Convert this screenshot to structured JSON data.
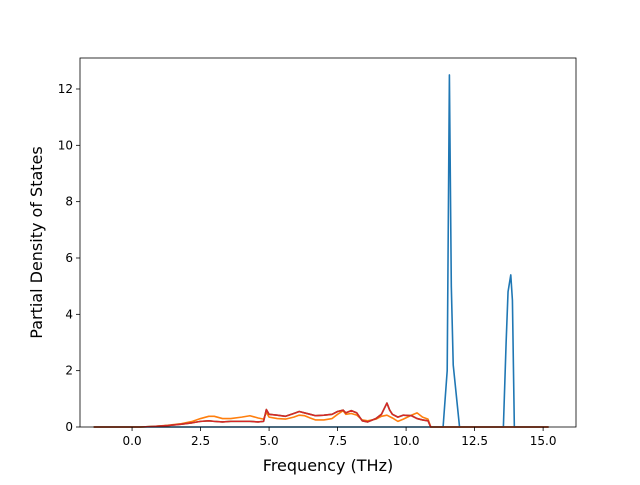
{
  "chart_data": {
    "type": "line",
    "title": "",
    "xlabel": "Frequency (THz)",
    "ylabel": "Partial Density of States",
    "xlim": [
      -1.9,
      16.2
    ],
    "ylim": [
      0,
      13.1
    ],
    "xticks": [
      0.0,
      2.5,
      5.0,
      7.5,
      10.0,
      12.5,
      15.0
    ],
    "xtick_labels": [
      "0.0",
      "2.5",
      "5.0",
      "7.5",
      "10.0",
      "12.5",
      "15.0"
    ],
    "yticks": [
      0,
      2,
      4,
      6,
      8,
      10,
      12
    ],
    "ytick_labels": [
      "0",
      "2",
      "4",
      "6",
      "8",
      "10",
      "12"
    ],
    "grid": false,
    "legend": "none",
    "series": [
      {
        "color": "#1f77b4",
        "points": [
          [
            -1.4,
            0
          ],
          [
            11.35,
            0
          ],
          [
            11.5,
            2.0
          ],
          [
            11.58,
            12.5
          ],
          [
            11.65,
            5.0
          ],
          [
            11.72,
            2.2
          ],
          [
            11.95,
            0
          ],
          [
            13.55,
            0
          ],
          [
            13.65,
            3.0
          ],
          [
            13.72,
            4.8
          ],
          [
            13.82,
            5.4
          ],
          [
            13.88,
            4.5
          ],
          [
            13.95,
            0
          ],
          [
            15.2,
            0
          ]
        ]
      },
      {
        "color": "#ff7f0e",
        "points": [
          [
            -1.4,
            0
          ],
          [
            0.3,
            0
          ],
          [
            0.8,
            0.02
          ],
          [
            1.3,
            0.06
          ],
          [
            1.8,
            0.12
          ],
          [
            2.2,
            0.2
          ],
          [
            2.5,
            0.3
          ],
          [
            2.8,
            0.38
          ],
          [
            3.0,
            0.38
          ],
          [
            3.3,
            0.3
          ],
          [
            3.6,
            0.3
          ],
          [
            4.0,
            0.35
          ],
          [
            4.3,
            0.4
          ],
          [
            4.6,
            0.32
          ],
          [
            4.8,
            0.28
          ],
          [
            4.9,
            0.52
          ],
          [
            5.0,
            0.35
          ],
          [
            5.3,
            0.3
          ],
          [
            5.6,
            0.28
          ],
          [
            5.9,
            0.35
          ],
          [
            6.1,
            0.42
          ],
          [
            6.3,
            0.4
          ],
          [
            6.5,
            0.32
          ],
          [
            6.7,
            0.25
          ],
          [
            7.0,
            0.25
          ],
          [
            7.3,
            0.3
          ],
          [
            7.5,
            0.45
          ],
          [
            7.7,
            0.58
          ],
          [
            7.8,
            0.45
          ],
          [
            8.0,
            0.48
          ],
          [
            8.2,
            0.42
          ],
          [
            8.4,
            0.25
          ],
          [
            8.6,
            0.22
          ],
          [
            8.9,
            0.28
          ],
          [
            9.1,
            0.38
          ],
          [
            9.3,
            0.42
          ],
          [
            9.5,
            0.32
          ],
          [
            9.7,
            0.2
          ],
          [
            9.9,
            0.28
          ],
          [
            10.2,
            0.42
          ],
          [
            10.4,
            0.5
          ],
          [
            10.6,
            0.35
          ],
          [
            10.8,
            0.28
          ],
          [
            10.9,
            0
          ],
          [
            15.2,
            0
          ]
        ]
      },
      {
        "color": "#2ca02c",
        "points": [
          [
            -1.4,
            0
          ],
          [
            0.3,
            0
          ],
          [
            0.8,
            0.02
          ],
          [
            1.3,
            0.05
          ],
          [
            1.8,
            0.1
          ],
          [
            2.2,
            0.15
          ],
          [
            2.5,
            0.2
          ],
          [
            2.8,
            0.22
          ],
          [
            3.0,
            0.2
          ],
          [
            3.3,
            0.18
          ],
          [
            3.6,
            0.2
          ],
          [
            4.0,
            0.2
          ],
          [
            4.3,
            0.2
          ],
          [
            4.6,
            0.18
          ],
          [
            4.8,
            0.2
          ],
          [
            4.9,
            0.62
          ],
          [
            5.0,
            0.45
          ],
          [
            5.3,
            0.42
          ],
          [
            5.6,
            0.38
          ],
          [
            5.9,
            0.48
          ],
          [
            6.1,
            0.55
          ],
          [
            6.3,
            0.5
          ],
          [
            6.5,
            0.45
          ],
          [
            6.7,
            0.4
          ],
          [
            7.0,
            0.42
          ],
          [
            7.3,
            0.45
          ],
          [
            7.5,
            0.55
          ],
          [
            7.7,
            0.6
          ],
          [
            7.8,
            0.5
          ],
          [
            8.0,
            0.58
          ],
          [
            8.2,
            0.5
          ],
          [
            8.4,
            0.22
          ],
          [
            8.6,
            0.18
          ],
          [
            8.9,
            0.3
          ],
          [
            9.1,
            0.45
          ],
          [
            9.3,
            0.85
          ],
          [
            9.4,
            0.6
          ],
          [
            9.5,
            0.45
          ],
          [
            9.7,
            0.35
          ],
          [
            9.9,
            0.42
          ],
          [
            10.2,
            0.4
          ],
          [
            10.4,
            0.3
          ],
          [
            10.6,
            0.25
          ],
          [
            10.8,
            0.22
          ],
          [
            10.9,
            0
          ],
          [
            15.2,
            0
          ]
        ]
      },
      {
        "color": "#d62728",
        "points": [
          [
            -1.4,
            0
          ],
          [
            0.3,
            0
          ],
          [
            0.8,
            0.02
          ],
          [
            1.3,
            0.05
          ],
          [
            1.8,
            0.1
          ],
          [
            2.2,
            0.15
          ],
          [
            2.5,
            0.2
          ],
          [
            2.8,
            0.22
          ],
          [
            3.0,
            0.2
          ],
          [
            3.3,
            0.18
          ],
          [
            3.6,
            0.2
          ],
          [
            4.0,
            0.2
          ],
          [
            4.3,
            0.2
          ],
          [
            4.6,
            0.18
          ],
          [
            4.8,
            0.2
          ],
          [
            4.9,
            0.62
          ],
          [
            5.0,
            0.45
          ],
          [
            5.3,
            0.42
          ],
          [
            5.6,
            0.38
          ],
          [
            5.9,
            0.48
          ],
          [
            6.1,
            0.55
          ],
          [
            6.3,
            0.5
          ],
          [
            6.5,
            0.45
          ],
          [
            6.7,
            0.4
          ],
          [
            7.0,
            0.42
          ],
          [
            7.3,
            0.45
          ],
          [
            7.5,
            0.55
          ],
          [
            7.7,
            0.6
          ],
          [
            7.8,
            0.5
          ],
          [
            8.0,
            0.58
          ],
          [
            8.2,
            0.5
          ],
          [
            8.4,
            0.22
          ],
          [
            8.6,
            0.18
          ],
          [
            8.9,
            0.3
          ],
          [
            9.1,
            0.45
          ],
          [
            9.3,
            0.85
          ],
          [
            9.4,
            0.6
          ],
          [
            9.5,
            0.45
          ],
          [
            9.7,
            0.35
          ],
          [
            9.9,
            0.42
          ],
          [
            10.2,
            0.4
          ],
          [
            10.4,
            0.3
          ],
          [
            10.6,
            0.25
          ],
          [
            10.8,
            0.22
          ],
          [
            10.9,
            0
          ],
          [
            15.2,
            0
          ]
        ]
      }
    ]
  }
}
